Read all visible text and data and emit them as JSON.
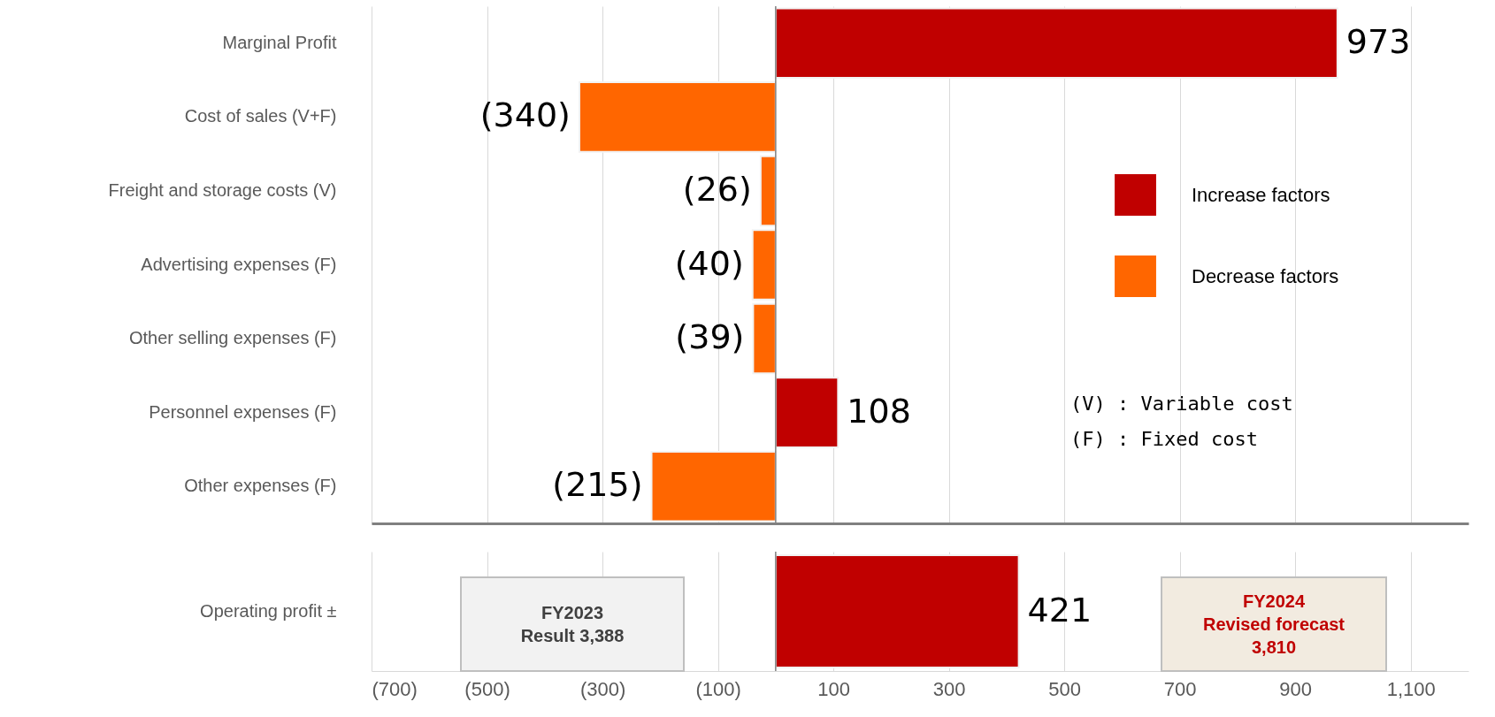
{
  "chart_data": [
    {
      "type": "bar",
      "orientation": "horizontal",
      "categories": [
        "Marginal Profit",
        "Cost of sales (V+F)",
        "Freight and storage costs (V)",
        "Advertising expenses (F)",
        "Other selling expenses (F)",
        "Personnel expenses (F)",
        "Other expenses (F)"
      ],
      "series": [
        {
          "name": "Increase factors",
          "color": "#c00000",
          "values": [
            973,
            null,
            null,
            null,
            null,
            108,
            null
          ],
          "value_labels": [
            "973",
            null,
            null,
            null,
            null,
            "108",
            null
          ]
        },
        {
          "name": "Decrease factors",
          "color": "#ff6600",
          "values": [
            null,
            -340,
            -26,
            -40,
            -39,
            null,
            -215
          ],
          "value_labels": [
            null,
            "(340)",
            "(26)",
            "(40)",
            "(39)",
            null,
            "(215)"
          ]
        }
      ],
      "xlim": [
        -700,
        1200
      ],
      "xticks": [
        -700,
        -500,
        -300,
        -100,
        100,
        300,
        500,
        700,
        900,
        1100
      ],
      "grid": "x",
      "legend": "right",
      "tick_labels": "y",
      "ref_lines": [
        {
          "axis": "x",
          "value": 0
        }
      ],
      "annotations": [
        "(V) :    Variable cost",
        "(F) :    Fixed cost"
      ]
    },
    {
      "type": "bar",
      "orientation": "horizontal",
      "categories": [
        "Operating profit ±"
      ],
      "series": [
        {
          "color": "#c00000",
          "values": [
            421
          ]
        }
      ],
      "data_labels": true,
      "xlim": [
        -700,
        1200
      ],
      "xticks": [
        {
          "value": -700,
          "label": "(700)"
        },
        {
          "value": -500,
          "label": "(500)"
        },
        {
          "value": -300,
          "label": "(300)"
        },
        {
          "value": -100,
          "label": "(100)"
        },
        100,
        300,
        500,
        700,
        900,
        {
          "value": 1100,
          "label": "1,100"
        }
      ],
      "grid": "x",
      "ref_lines": [
        {
          "axis": "x",
          "value": 0
        }
      ],
      "annotations": [
        "FY2023\nResult 3,388",
        "FY2024\nRevised forecast\n3,810"
      ]
    }
  ]
}
